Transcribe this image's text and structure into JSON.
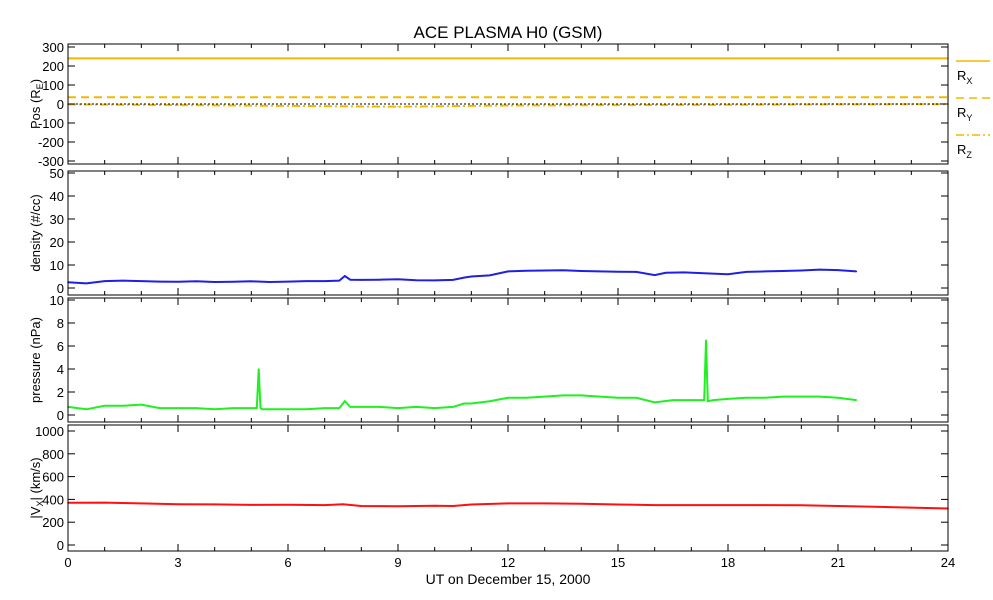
{
  "chart_data": {
    "type": "line",
    "title": "ACE PLASMA H0 (GSM)",
    "xlabel": "UT on December 15, 2000",
    "xlim": [
      0,
      24
    ],
    "xticks": [
      "0",
      "3",
      "6",
      "9",
      "12",
      "15",
      "18",
      "21",
      "24"
    ],
    "panels": [
      {
        "id": "pos",
        "ylabel": "Pos (RE)",
        "ylabel_main": "Pos (R",
        "ylabel_sub": "E",
        "ylabel_close": ")",
        "ylim": [
          -300,
          300
        ],
        "yticks": [
          "300",
          "200",
          "100",
          "0",
          "-100",
          "-200",
          "-300"
        ],
        "yvals": [
          300,
          200,
          100,
          0,
          -100,
          -200,
          -300
        ],
        "legend": [
          {
            "label": "R",
            "sub": "X",
            "style": "solid"
          },
          {
            "label": "R",
            "sub": "Y",
            "style": "dashed"
          },
          {
            "label": "R",
            "sub": "Z",
            "style": "dashdot"
          }
        ],
        "series": [
          {
            "name": "Rx",
            "color": "#f0b800",
            "style": "solid",
            "x": [
              0,
              24
            ],
            "y": [
              240,
              240
            ]
          },
          {
            "name": "Ry",
            "color": "#f0b800",
            "style": "dashed",
            "x": [
              0,
              24
            ],
            "y": [
              36,
              36
            ]
          },
          {
            "name": "Rz",
            "color": "#f0b800",
            "style": "dashdot",
            "x": [
              0,
              3,
              6,
              9,
              12,
              15,
              18,
              21,
              24
            ],
            "y": [
              -2,
              -6,
              -10,
              -14,
              -8,
              -6,
              -4,
              -2,
              -1
            ]
          },
          {
            "name": "zero",
            "color": "#000000",
            "style": "dotted",
            "x": [
              0,
              24
            ],
            "y": [
              0,
              0
            ]
          }
        ]
      },
      {
        "id": "density",
        "ylabel": "density (#/cc)",
        "ylim": [
          0,
          50
        ],
        "yticks": [
          "50",
          "40",
          "30",
          "20",
          "10",
          "0"
        ],
        "yvals": [
          50,
          40,
          30,
          20,
          10,
          0
        ],
        "series": [
          {
            "name": "density",
            "color": "#2020e0",
            "style": "solid",
            "x": [
              0,
              0.5,
              1,
              1.5,
              2,
              2.5,
              3,
              3.5,
              4,
              4.5,
              5,
              5.5,
              6,
              6.5,
              7,
              7.4,
              7.55,
              7.7,
              8,
              8.5,
              9,
              9.5,
              10,
              10.5,
              10.8,
              11,
              11.5,
              12,
              12.5,
              13,
              13.5,
              14,
              14.5,
              15,
              15.5,
              16,
              16.3,
              16.8,
              17.5,
              18,
              18.5,
              19,
              19.5,
              20,
              20.5,
              21,
              21.5
            ],
            "y": [
              2.5,
              2.0,
              3.0,
              3.2,
              3.0,
              2.8,
              2.7,
              2.9,
              2.6,
              2.7,
              2.9,
              2.6,
              2.8,
              3.0,
              3.0,
              3.2,
              5.2,
              3.6,
              3.5,
              3.6,
              3.8,
              3.4,
              3.3,
              3.5,
              4.5,
              5.0,
              5.5,
              7.2,
              7.5,
              7.6,
              7.7,
              7.4,
              7.2,
              7.1,
              7.0,
              5.6,
              6.6,
              6.8,
              6.3,
              6.0,
              7.0,
              7.2,
              7.4,
              7.6,
              8.0,
              7.8,
              7.2
            ]
          }
        ]
      },
      {
        "id": "pressure",
        "ylabel": "pressure (nPa)",
        "ylim": [
          0,
          10
        ],
        "yticks": [
          "10",
          "8",
          "6",
          "4",
          "2",
          "0"
        ],
        "yvals": [
          10,
          8,
          6,
          4,
          2,
          0
        ],
        "series": [
          {
            "name": "pressure",
            "color": "#20f020",
            "style": "solid",
            "x": [
              0,
              0.5,
              1,
              1.5,
              2,
              2.5,
              3,
              3.5,
              4,
              4.5,
              5,
              5.15,
              5.2,
              5.25,
              5.3,
              5.5,
              6,
              6.5,
              7,
              7.4,
              7.55,
              7.7,
              8,
              8.5,
              9,
              9.5,
              10,
              10.5,
              10.8,
              11,
              11.5,
              12,
              12.5,
              13,
              13.5,
              14,
              14.5,
              15,
              15.5,
              16,
              16.5,
              17,
              17.35,
              17.4,
              17.45,
              17.6,
              18,
              18.5,
              19,
              19.5,
              20,
              20.5,
              21,
              21.5
            ],
            "y": [
              0.7,
              0.5,
              0.8,
              0.8,
              0.9,
              0.6,
              0.6,
              0.6,
              0.5,
              0.6,
              0.6,
              0.6,
              4.0,
              0.6,
              0.5,
              0.5,
              0.5,
              0.5,
              0.6,
              0.6,
              1.2,
              0.7,
              0.7,
              0.7,
              0.6,
              0.7,
              0.6,
              0.7,
              1.0,
              1.0,
              1.2,
              1.5,
              1.5,
              1.6,
              1.7,
              1.7,
              1.6,
              1.5,
              1.5,
              1.1,
              1.3,
              1.3,
              1.3,
              6.5,
              1.2,
              1.3,
              1.4,
              1.5,
              1.5,
              1.6,
              1.6,
              1.6,
              1.5,
              1.3
            ]
          }
        ]
      },
      {
        "id": "vx",
        "ylabel": "|VX| (km/s)",
        "ylabel_main": "|V",
        "ylabel_sub": "X",
        "ylabel_close": "| (km/s)",
        "ylim": [
          0,
          1000
        ],
        "yticks": [
          "1000",
          "800",
          "600",
          "400",
          "200",
          "0"
        ],
        "yvals": [
          1000,
          800,
          600,
          400,
          200,
          0
        ],
        "series": [
          {
            "name": "vx",
            "color": "#ff1010",
            "style": "solid",
            "x": [
              0,
              1,
              2,
              3,
              4,
              5,
              6,
              7,
              7.5,
              8,
              9,
              10,
              10.5,
              11,
              12,
              13,
              14,
              15,
              16,
              17,
              18,
              19,
              20,
              21,
              22,
              23,
              24
            ],
            "y": [
              370,
              372,
              365,
              358,
              356,
              352,
              353,
              350,
              357,
              342,
              340,
              345,
              342,
              355,
              365,
              365,
              362,
              355,
              350,
              350,
              350,
              350,
              348,
              342,
              335,
              328,
              320
            ]
          }
        ]
      }
    ]
  }
}
